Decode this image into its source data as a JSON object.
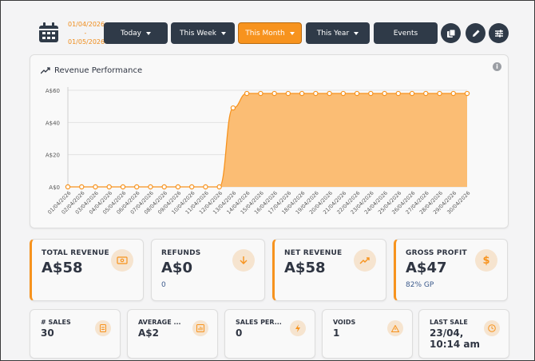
{
  "header": {
    "date_from": "01/04/2026",
    "date_sep": "-",
    "date_to": "01/05/2026",
    "buttons": [
      {
        "label": "Today",
        "active": false
      },
      {
        "label": "This Week",
        "active": false
      },
      {
        "label": "This Month",
        "active": true
      },
      {
        "label": "This Year",
        "active": false
      },
      {
        "label": "Events",
        "active": false
      }
    ],
    "icons": [
      "calendar-icon",
      "copy-icon",
      "pencil-icon",
      "sliders-icon"
    ]
  },
  "chart": {
    "title": "Revenue Performance",
    "info": "i"
  },
  "chart_data": {
    "type": "area",
    "title": "Revenue Performance",
    "xlabel": "",
    "ylabel": "",
    "yticks": [
      "A$0",
      "A$20",
      "A$40",
      "A$60"
    ],
    "ylim": [
      0,
      60
    ],
    "grid": true,
    "color": "#f7931e",
    "fill": "#fbbd74",
    "x": [
      "01/04/2026",
      "02/04/2026",
      "03/04/2026",
      "04/04/2026",
      "05/04/2026",
      "06/04/2026",
      "07/04/2026",
      "08/04/2026",
      "09/04/2026",
      "10/04/2026",
      "11/04/2026",
      "12/04/2026",
      "13/04/2026",
      "14/04/2026",
      "15/04/2026",
      "16/04/2026",
      "17/04/2026",
      "18/04/2026",
      "19/04/2026",
      "20/04/2026",
      "21/04/2026",
      "22/04/2026",
      "23/04/2026",
      "24/04/2026",
      "25/04/2026",
      "26/04/2026",
      "27/04/2026",
      "28/04/2026",
      "29/04/2026",
      "30/04/2026"
    ],
    "values": [
      0,
      0,
      0,
      0,
      0,
      0,
      0,
      0,
      0,
      0,
      0,
      0,
      49,
      58,
      58,
      58,
      58,
      58,
      58,
      58,
      58,
      58,
      58,
      58,
      58,
      58,
      58,
      58,
      58,
      58
    ]
  },
  "stats": [
    {
      "label": "TOTAL REVENUE",
      "value": "A$58",
      "sub": "",
      "icon": "cash-icon",
      "accent": true
    },
    {
      "label": "REFUNDS",
      "value": "A$0",
      "sub": "0",
      "icon": "arrow-down-icon",
      "accent": false
    },
    {
      "label": "NET REVENUE",
      "value": "A$58",
      "sub": "",
      "icon": "trend-up-icon",
      "accent": true
    },
    {
      "label": "GROSS PROFIT",
      "value": "A$47",
      "sub": "82% GP",
      "icon": "dollar-icon",
      "accent": true
    }
  ],
  "mini": [
    {
      "label": "# SALES",
      "value": "30",
      "icon": "receipt-icon"
    },
    {
      "label": "AVERAGE ...",
      "value": "A$2",
      "icon": "bar-chart-icon"
    },
    {
      "label": "SALES PER...",
      "value": "0",
      "icon": "bolt-icon"
    },
    {
      "label": "VOIDS",
      "value": "1",
      "icon": "warning-icon"
    },
    {
      "label": "LAST SALE",
      "value": "23/04,\n10:14 am",
      "icon": "clock-icon"
    }
  ]
}
